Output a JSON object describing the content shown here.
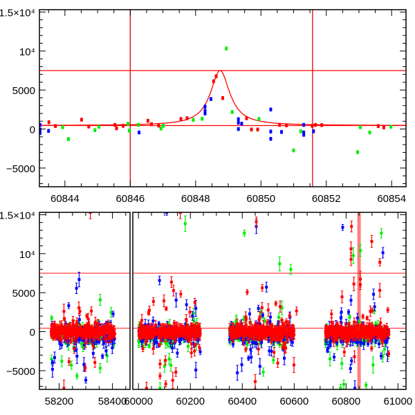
{
  "chart_data": [
    {
      "type": "scatter",
      "panel": "top",
      "title": "",
      "xlabel": "",
      "ylabel": "",
      "xlim": [
        60843.22,
        60854.44
      ],
      "ylim": [
        -7400,
        15300
      ],
      "x_ticks": [
        60844,
        60846,
        60848,
        60850,
        60852,
        60854
      ],
      "x_tick_labels": [
        "60844",
        "60846",
        "60848",
        "60850",
        "60852",
        "60854"
      ],
      "y_ticks": [
        -5000,
        0,
        5000,
        10000,
        15000
      ],
      "y_tick_labels": [
        "−5000",
        "0",
        "5000",
        "10⁴",
        "1.5×10⁴"
      ],
      "hlines": [
        7500,
        450
      ],
      "vlines": [
        60846.0,
        60851.58
      ],
      "model_curve": {
        "baseline": 450,
        "peak": 7500,
        "center": 60848.75,
        "width": 0.36,
        "shape": "lorentzian"
      },
      "default_error": 200,
      "series": [
        {
          "name": "blue",
          "color": "#0000ff",
          "points": [
            [
              60843.24,
              530
            ],
            [
              60843.24,
              -500
            ],
            [
              60843.24,
              -60
            ],
            [
              60843.5,
              -240
            ],
            [
              60846.27,
              -440
            ],
            [
              60848.29,
              2880
            ],
            [
              60848.29,
              2350
            ],
            [
              60848.29,
              2000
            ],
            [
              60848.47,
              3850
            ],
            [
              60849.31,
              1260
            ],
            [
              60849.31,
              820
            ],
            [
              60849.31,
              0
            ],
            [
              60849.41,
              680
            ],
            [
              60850.3,
              2500
            ],
            [
              60850.3,
              -320
            ],
            [
              60850.3,
              -1260
            ],
            [
              60850.63,
              -380
            ],
            [
              60851.31,
              530
            ],
            [
              60851.31,
              -440
            ],
            [
              60851.31,
              -740
            ],
            [
              60851.61,
              -290
            ]
          ]
        },
        {
          "name": "green",
          "color": "#00ee00",
          "points": [
            [
              60843.93,
              235
            ],
            [
              60844.11,
              -1290
            ],
            [
              60844.92,
              -150
            ],
            [
              60845.04,
              290
            ],
            [
              60845.93,
              680
            ],
            [
              60845.97,
              -200
            ],
            [
              60846.25,
              530
            ],
            [
              60846.94,
              60
            ],
            [
              60847.01,
              410
            ],
            [
              60847.93,
              1180
            ],
            [
              60848.2,
              1320
            ],
            [
              60848.94,
              10320
            ],
            [
              60849.12,
              2180
            ],
            [
              60849.94,
              1290
            ],
            [
              60851.0,
              -2740
            ],
            [
              60851.22,
              -290
            ],
            [
              60852.96,
              -2970
            ],
            [
              60853.04,
              235
            ],
            [
              60853.33,
              -440
            ],
            [
              60853.98,
              290
            ]
          ]
        },
        {
          "name": "red",
          "color": "#ff0000",
          "points": [
            [
              60843.51,
              880
            ],
            [
              60843.71,
              380
            ],
            [
              60844.51,
              1200
            ],
            [
              60844.73,
              320
            ],
            [
              60845.53,
              530
            ],
            [
              60845.58,
              90
            ],
            [
              60845.78,
              410
            ],
            [
              60846.54,
              1060
            ],
            [
              60846.65,
              620
            ],
            [
              60846.87,
              440
            ],
            [
              60847.55,
              1290
            ],
            [
              60847.74,
              1380
            ],
            [
              60848.55,
              6120
            ],
            [
              60848.63,
              6760
            ],
            [
              60848.83,
              3970
            ],
            [
              60849.56,
              1380
            ],
            [
              60849.71,
              -60
            ],
            [
              60849.9,
              -60
            ],
            [
              60850.57,
              530
            ],
            [
              60850.78,
              470
            ],
            [
              60851.57,
              410
            ],
            [
              60851.67,
              530
            ],
            [
              60851.86,
              500
            ],
            [
              60853.59,
              380
            ],
            [
              60853.76,
              200
            ]
          ]
        }
      ]
    },
    {
      "type": "scatter",
      "panel": "bottom",
      "title": "",
      "xlabel": "",
      "ylabel": "",
      "broken_x_axis": true,
      "xlim_segments": [
        [
          58126,
          58466
        ],
        [
          59978,
          61031
        ]
      ],
      "ylim": [
        -7400,
        15300
      ],
      "x_ticks_segments": [
        [
          58200,
          58400
        ],
        [
          60000,
          60200,
          60400,
          60600,
          60800,
          61000
        ]
      ],
      "x_tick_labels_segments": [
        [
          "58200",
          "58400"
        ],
        [
          "60000",
          "60200",
          "60400",
          "60600",
          "60800",
          "61000"
        ]
      ],
      "y_ticks": [
        -5000,
        0,
        5000,
        10000,
        15000
      ],
      "y_tick_labels": [
        "−5000",
        "0",
        "5000",
        "10⁴",
        "1.5×10⁴"
      ],
      "hlines": [
        7500,
        450
      ],
      "highlight_band": [
        60846.0,
        60851.58
      ],
      "seasons": [
        [
          58170,
          58410
        ],
        [
          60000,
          60240
        ],
        [
          60350,
          60600
        ],
        [
          60720,
          60965
        ]
      ],
      "default_error": 350,
      "outliers": {
        "blue": [
          [
            58275,
            6690
          ],
          [
            58265,
            5560
          ],
          [
            58236,
            3340
          ],
          [
            58175,
            -4020
          ],
          [
            58175,
            -4820
          ],
          [
            58183,
            -3310
          ],
          [
            58267,
            -3140
          ],
          [
            58300,
            -6210
          ],
          [
            58293,
            -4200
          ],
          [
            58328,
            -2780
          ],
          [
            60081,
            6570
          ],
          [
            60145,
            4050
          ],
          [
            60109,
            15300
          ],
          [
            60185,
            3460
          ],
          [
            60221,
            2990
          ],
          [
            60221,
            -4910
          ],
          [
            60238,
            -2570
          ],
          [
            60454,
            13490
          ],
          [
            60493,
            5710
          ],
          [
            60462,
            2990
          ],
          [
            60381,
            -5270
          ],
          [
            60468,
            -4440
          ],
          [
            60562,
            -3400
          ],
          [
            60398,
            -4230
          ],
          [
            60787,
            13370
          ],
          [
            60942,
            10120
          ],
          [
            60906,
            4790
          ],
          [
            60819,
            4020
          ],
          [
            60910,
            3200
          ],
          [
            60782,
            2510
          ],
          [
            60817,
            -4730
          ],
          [
            60821,
            -3730
          ],
          [
            60754,
            -3250
          ],
          [
            60960,
            -2900
          ],
          [
            60935,
            -3110
          ],
          [
            60834,
            -7250
          ]
        ],
        "green": [
          [
            58354,
            4080
          ],
          [
            58210,
            -3790
          ],
          [
            58246,
            -4290
          ],
          [
            58354,
            -4670
          ],
          [
            58380,
            -3100
          ],
          [
            58267,
            -5680
          ],
          [
            60180,
            13850
          ],
          [
            60100,
            -4440
          ],
          [
            60083,
            -7250
          ],
          [
            60118,
            -3490
          ],
          [
            60408,
            12630
          ],
          [
            60544,
            8700
          ],
          [
            60587,
            7990
          ],
          [
            60553,
            3050
          ],
          [
            60481,
            -5180
          ],
          [
            60520,
            -3640
          ],
          [
            60828,
            9760
          ],
          [
            60855,
            10410
          ],
          [
            60936,
            12630
          ],
          [
            60738,
            -3490
          ],
          [
            60904,
            -4260
          ],
          [
            60877,
            -6860
          ],
          [
            60791,
            -6750
          ],
          [
            60779,
            -7250
          ]
        ],
        "red": [
          [
            58218,
            2600
          ],
          [
            58298,
            -4670
          ],
          [
            58321,
            2660
          ],
          [
            58218,
            -7250
          ],
          [
            58317,
            15300
          ],
          [
            60098,
            3960
          ],
          [
            60127,
            6360
          ],
          [
            60135,
            5270
          ],
          [
            60163,
            4820
          ],
          [
            60161,
            15300
          ],
          [
            60217,
            3760
          ],
          [
            60198,
            2510
          ],
          [
            60104,
            -3670
          ],
          [
            60083,
            -4140
          ],
          [
            60083,
            -5680
          ],
          [
            60105,
            -6690
          ],
          [
            60132,
            -6240
          ],
          [
            60144,
            -5180
          ],
          [
            60031,
            -7250
          ],
          [
            60454,
            14080
          ],
          [
            60477,
            5620
          ],
          [
            60476,
            3080
          ],
          [
            60500,
            2780
          ],
          [
            60609,
            2660
          ],
          [
            60599,
            -4260
          ],
          [
            60450,
            -6390
          ],
          [
            60821,
            13490
          ],
          [
            60819,
            10620
          ],
          [
            60819,
            9290
          ],
          [
            60899,
            11570
          ],
          [
            60930,
            8900
          ],
          [
            60930,
            5300
          ],
          [
            60830,
            6120
          ],
          [
            60855,
            6750
          ],
          [
            60855,
            6040
          ]
        ]
      },
      "colors": {
        "blue": "#0000ff",
        "green": "#00ee00",
        "red": "#ff0000"
      }
    }
  ]
}
